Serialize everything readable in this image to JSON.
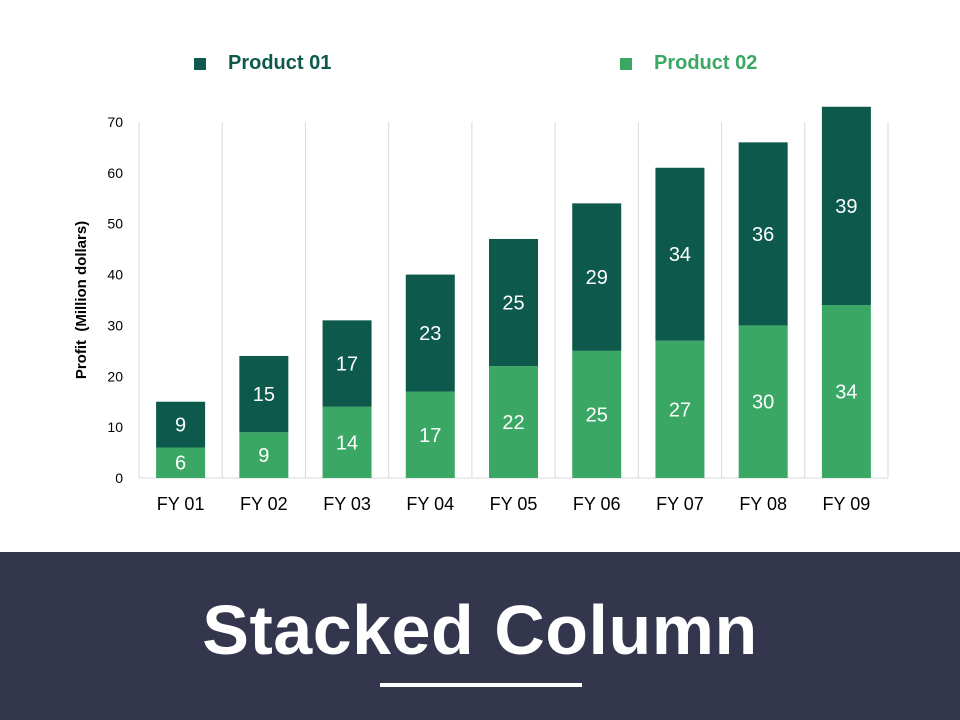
{
  "colors": {
    "product01": "#0d5a4c",
    "product02": "#3aa764",
    "footer_bg": "#33364d",
    "grid": "#d9d9d9",
    "axis_text": "#000000"
  },
  "chart_data": {
    "type": "bar",
    "stacked": true,
    "categories": [
      "FY 01",
      "FY 02",
      "FY 03",
      "FY 04",
      "FY 05",
      "FY 06",
      "FY 07",
      "FY 08",
      "FY 09"
    ],
    "series": [
      {
        "name": "Product 02",
        "values": [
          6,
          9,
          14,
          17,
          22,
          25,
          27,
          30,
          34
        ]
      },
      {
        "name": "Product 01",
        "values": [
          9,
          15,
          17,
          23,
          25,
          29,
          34,
          36,
          39
        ]
      }
    ],
    "ylabel": "Profit  (Million dollars)",
    "xlabel": "",
    "ylim": [
      0,
      70
    ],
    "yticks": [
      0,
      10,
      20,
      30,
      40,
      50,
      60,
      70
    ],
    "legend": {
      "placement": "top",
      "entries": [
        "Product 01",
        "Product 02"
      ]
    },
    "grid": "vertical"
  },
  "footer": {
    "title": "Stacked Column"
  }
}
